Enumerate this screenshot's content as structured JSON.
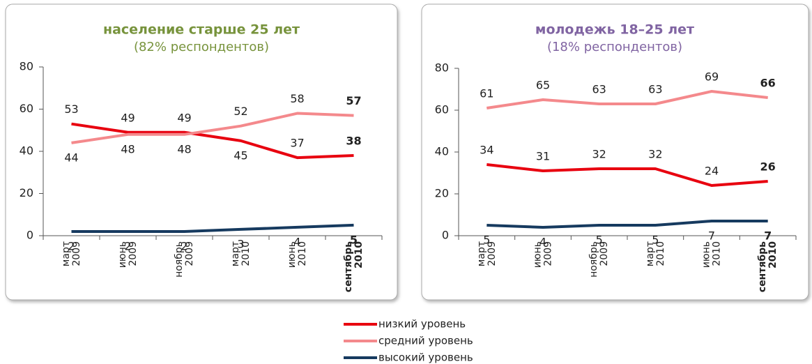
{
  "chart_data": [
    {
      "type": "line",
      "title": "население старше 25 лет",
      "subtitle": "(82% респондентов)",
      "title_color": "#77933c",
      "categories": [
        "март 2009",
        "июнь 2009",
        "ноябрь 2009",
        "март 2010",
        "июнь 2010",
        "сентябрь 2010"
      ],
      "ylim": [
        0,
        80
      ],
      "yticks": [
        0,
        20,
        40,
        60,
        80
      ],
      "series": [
        {
          "name": "низкий уровень",
          "color": "#e8000f",
          "values": [
            53,
            49,
            49,
            45,
            37,
            38
          ]
        },
        {
          "name": "средний уровень",
          "color": "#f4898c",
          "values": [
            44,
            48,
            48,
            52,
            58,
            57
          ]
        },
        {
          "name": "высокий уровень",
          "color": "#163a5f",
          "values": [
            2,
            2,
            2,
            3,
            4,
            5
          ]
        }
      ]
    },
    {
      "type": "line",
      "title": "молодежь 18–25 лет",
      "subtitle": "(18% респондентов)",
      "title_color": "#8064a2",
      "categories": [
        "март 2009",
        "июнь 2009",
        "ноябрь 2009",
        "март 2010",
        "июнь 2010",
        "сентябрь 2010"
      ],
      "ylim": [
        0,
        80
      ],
      "yticks": [
        0,
        20,
        40,
        60,
        80
      ],
      "series": [
        {
          "name": "низкий уровень",
          "color": "#e8000f",
          "values": [
            34,
            31,
            32,
            32,
            24,
            26
          ]
        },
        {
          "name": "средний уровень",
          "color": "#f4898c",
          "values": [
            61,
            65,
            63,
            63,
            69,
            66
          ]
        },
        {
          "name": "высокий уровень",
          "color": "#163a5f",
          "values": [
            5,
            4,
            5,
            5,
            7,
            7
          ]
        }
      ]
    }
  ]
}
